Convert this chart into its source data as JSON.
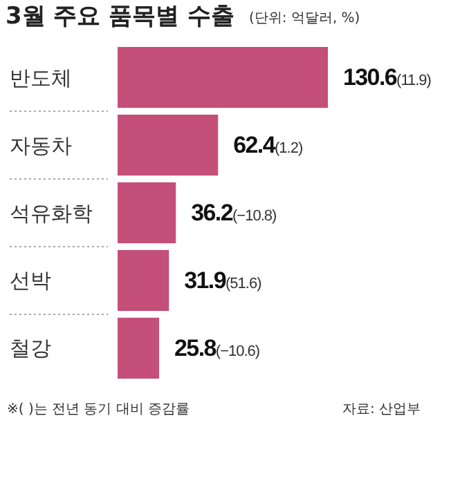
{
  "chart_data": {
    "type": "bar",
    "orientation": "horizontal",
    "title": "3월 주요 품목별 수출",
    "subtitle": "(단위: 억달러, %)",
    "categories": [
      "반도체",
      "자동차",
      "석유화학",
      "선박",
      "철강"
    ],
    "values": [
      130.6,
      62.4,
      36.2,
      31.9,
      25.8
    ],
    "color": "#c44f78",
    "value_labels": [
      "130.6(11.9)",
      "62.4(1.2)",
      "36.2(−10.8)",
      "31.9(51.6)",
      "25.8(−10.6)"
    ],
    "annotations": [
      "※( )는 전년 동기 대비 증감률",
      "자료: 산업부"
    ]
  }
}
